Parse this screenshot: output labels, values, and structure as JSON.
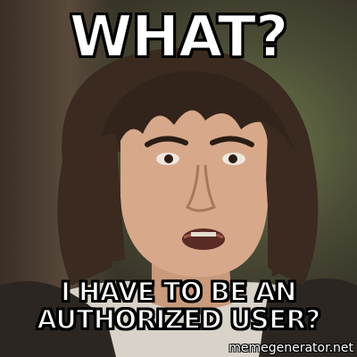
{
  "meme": {
    "top_text": "WHAT?",
    "bottom_text": "I HAVE TO BE AN AUTHORIZED USER?",
    "watermark": "memegenerator.net"
  },
  "colors": {
    "caption_fill": "#ffffff",
    "caption_stroke": "#000000"
  }
}
